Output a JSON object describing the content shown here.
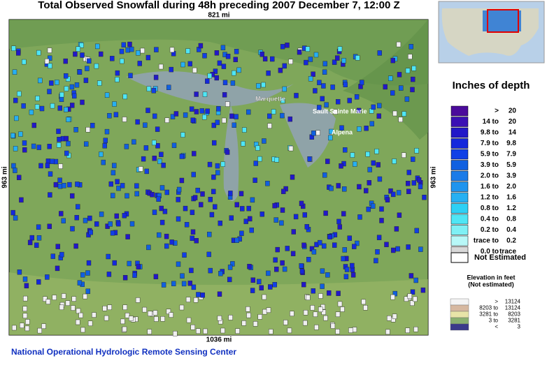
{
  "header": {
    "title": "Total Observed Snowfall during 48h preceding 2007 December 7, 12:00 Z"
  },
  "map": {
    "scale_top": "821 mi",
    "scale_bottom": "1036 mi",
    "scale_left": "963 mi",
    "scale_right": "963 mi",
    "cities": [
      "Marquette",
      "Sault Sainte Marie",
      "Alpena"
    ]
  },
  "legend": {
    "title": "Inches of depth",
    "items": [
      {
        "left": ">",
        "right": "20",
        "color": "#4b0b9b"
      },
      {
        "left": "14 to",
        "right": "20",
        "color": "#3a10b4"
      },
      {
        "left": "9.8 to",
        "right": "14",
        "color": "#2218c8"
      },
      {
        "left": "7.9 to",
        "right": "9.8",
        "color": "#1428dc"
      },
      {
        "left": "5.9 to",
        "right": "7.9",
        "color": "#1040e6"
      },
      {
        "left": "3.9 to",
        "right": "5.9",
        "color": "#1060e0"
      },
      {
        "left": "2.0 to",
        "right": "3.9",
        "color": "#1b7be8"
      },
      {
        "left": "1.6 to",
        "right": "2.0",
        "color": "#1f94ee"
      },
      {
        "left": "1.2 to",
        "right": "1.6",
        "color": "#27b0f2"
      },
      {
        "left": "0.8 to",
        "right": "1.2",
        "color": "#2dd0f5"
      },
      {
        "left": "0.4 to",
        "right": "0.8",
        "color": "#4fe6f5"
      },
      {
        "left": "0.2 to",
        "right": "0.4",
        "color": "#7ff0f5"
      },
      {
        "left": "trace to",
        "right": "0.2",
        "color": "#b8f8f8"
      },
      {
        "left": "0.0 to",
        "right": "trace",
        "color": "#d8d8d8"
      }
    ],
    "not_estimated": "Not Estimated"
  },
  "elevation": {
    "title": "Elevation in feet",
    "subtitle": "(Not estimated)",
    "items": [
      {
        "left": ">",
        "right": "13124",
        "color": "#f4f4f4"
      },
      {
        "left": "8203 to",
        "right": "13124",
        "color": "#d6b8a0"
      },
      {
        "left": "3281 to",
        "right": "8203",
        "color": "#e8e4a8"
      },
      {
        "left": "3 to",
        "right": "3281",
        "color": "#8ab070"
      },
      {
        "left": "<",
        "right": "3",
        "color": "#3a3a8a"
      }
    ]
  },
  "footer": "National Operational Hydrologic Remote Sensing Center"
}
